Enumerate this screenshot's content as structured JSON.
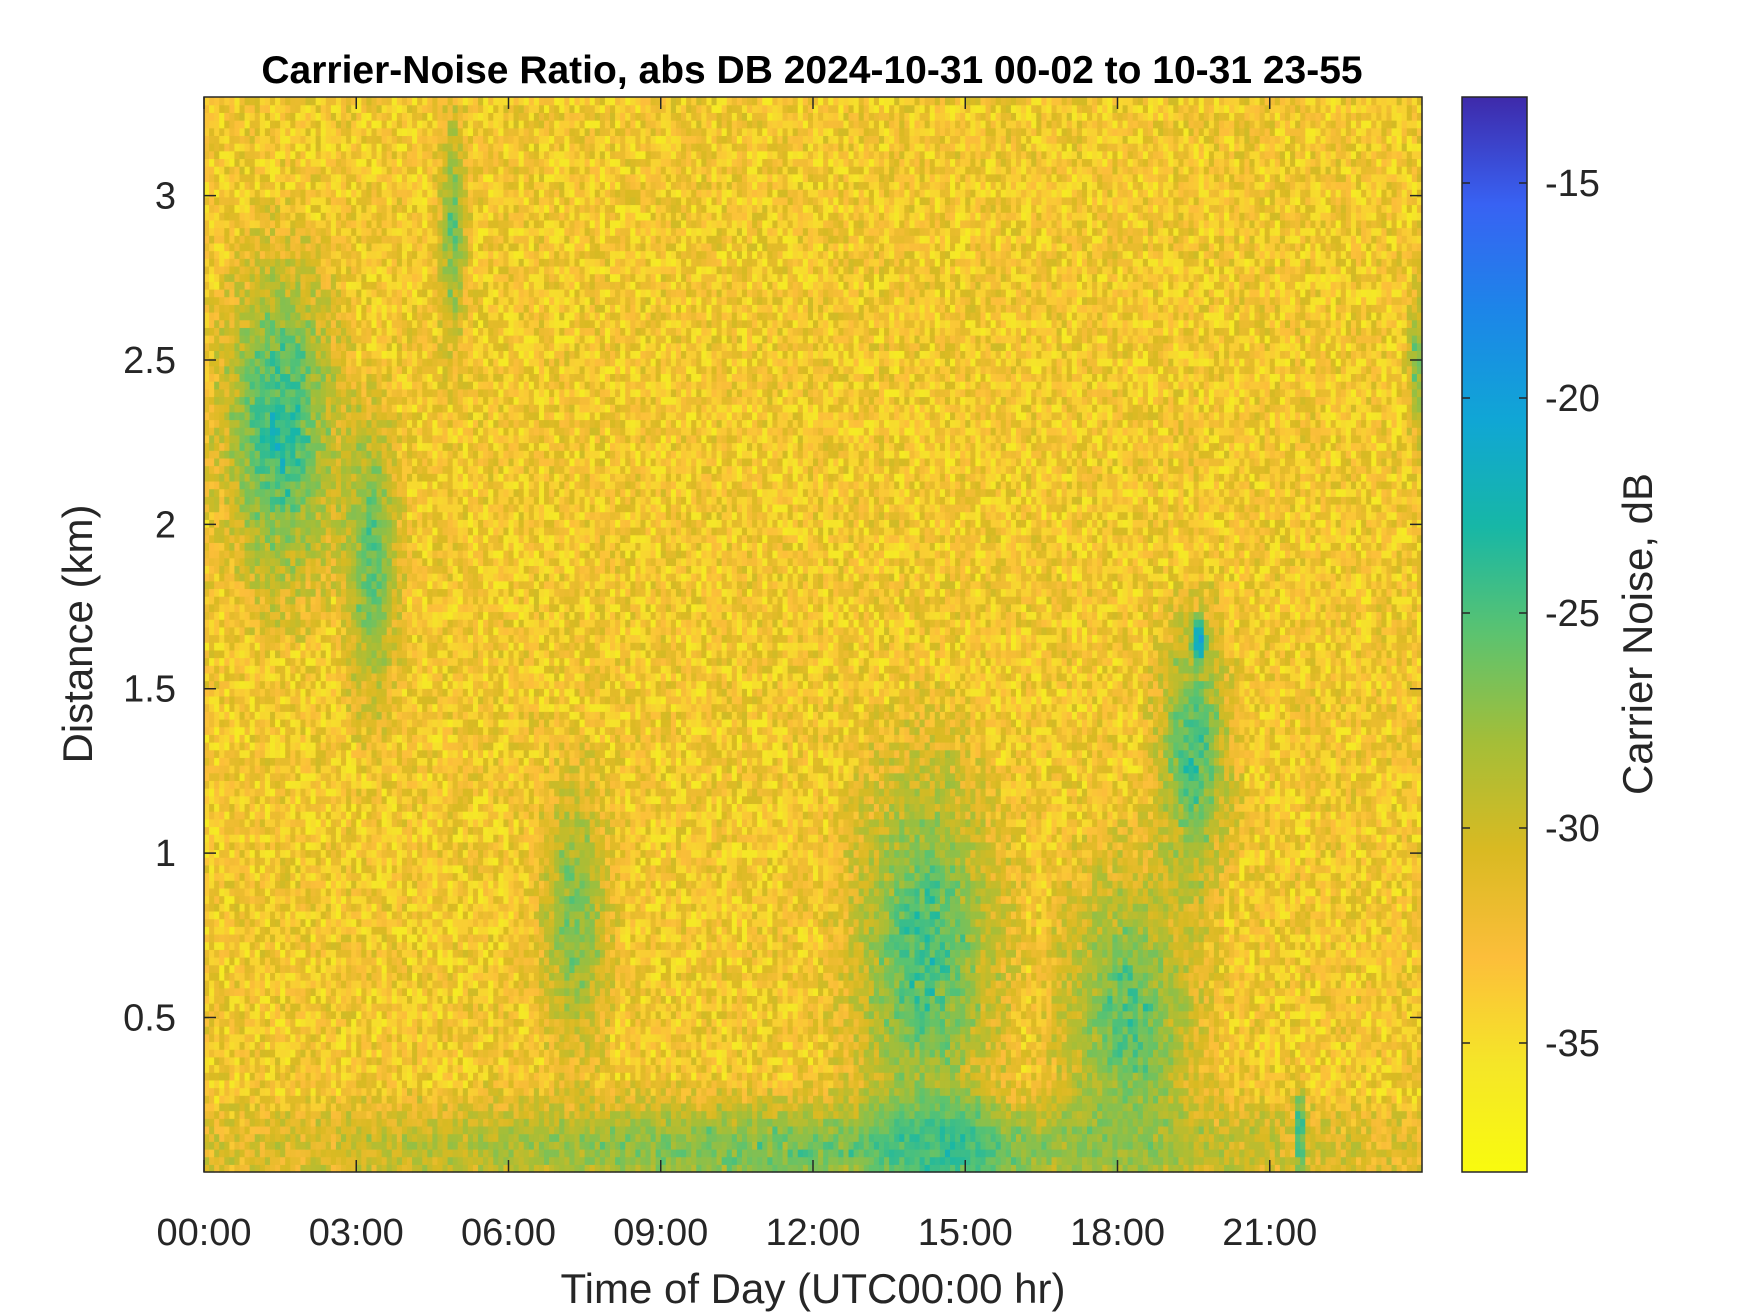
{
  "chart_data": {
    "type": "heatmap",
    "title": "Carrier-Noise Ratio, abs DB 2024-10-31 00-02 to 10-31 23-55",
    "xlabel": "Time of Day (UTC00:00 hr)",
    "ylabel": "Distance (km)",
    "colorbar_label": "Carrier Noise, dB",
    "xlim": [
      0,
      24
    ],
    "ylim": [
      0.03,
      3.3
    ],
    "clim": [
      -38,
      -13
    ],
    "colormap": "parula",
    "x_ticks": [
      {
        "value": 0,
        "label": "00:00"
      },
      {
        "value": 3,
        "label": "03:00"
      },
      {
        "value": 6,
        "label": "06:00"
      },
      {
        "value": 9,
        "label": "09:00"
      },
      {
        "value": 12,
        "label": "12:00"
      },
      {
        "value": 15,
        "label": "15:00"
      },
      {
        "value": 18,
        "label": "18:00"
      },
      {
        "value": 21,
        "label": "21:00"
      }
    ],
    "y_ticks": [
      {
        "value": 0.5,
        "label": "0.5"
      },
      {
        "value": 1,
        "label": "1"
      },
      {
        "value": 1.5,
        "label": "1.5"
      },
      {
        "value": 2,
        "label": "2"
      },
      {
        "value": 2.5,
        "label": "2.5"
      },
      {
        "value": 3,
        "label": "3"
      }
    ],
    "colorbar_ticks": [
      {
        "value": -15,
        "label": "-15"
      },
      {
        "value": -20,
        "label": "-20"
      },
      {
        "value": -25,
        "label": "-25"
      },
      {
        "value": -30,
        "label": "-30"
      },
      {
        "value": -35,
        "label": "-35"
      }
    ],
    "grid": false,
    "background_level": -33,
    "features": [
      {
        "x_center": 1.5,
        "y_center": 2.3,
        "x_width": 2.5,
        "y_height": 1.1,
        "value": -22
      },
      {
        "x_center": 3.3,
        "y_center": 1.9,
        "x_width": 1.2,
        "y_height": 1.0,
        "value": -24
      },
      {
        "x_center": 4.9,
        "y_center": 2.9,
        "x_width": 0.6,
        "y_height": 0.8,
        "value": -25
      },
      {
        "x_center": 7.3,
        "y_center": 0.8,
        "x_width": 1.5,
        "y_height": 0.9,
        "value": -25
      },
      {
        "x_center": 14.2,
        "y_center": 0.7,
        "x_width": 3.2,
        "y_height": 1.3,
        "value": -23
      },
      {
        "x_center": 14.5,
        "y_center": 0.1,
        "x_width": 3.0,
        "y_height": 0.3,
        "value": -20
      },
      {
        "x_center": 18.2,
        "y_center": 0.5,
        "x_width": 3.0,
        "y_height": 1.0,
        "value": -24
      },
      {
        "x_center": 19.5,
        "y_center": 1.3,
        "x_width": 1.6,
        "y_height": 0.9,
        "value": -23
      },
      {
        "x_center": 19.6,
        "y_center": 1.65,
        "x_width": 0.3,
        "y_height": 0.15,
        "value": -17
      },
      {
        "x_center": 21.6,
        "y_center": 0.15,
        "x_width": 0.2,
        "y_height": 0.3,
        "value": -18
      },
      {
        "x_center": 23.9,
        "y_center": 2.5,
        "x_width": 0.4,
        "y_height": 0.5,
        "value": -25
      },
      {
        "x_center": 12.0,
        "y_center": 0.1,
        "x_width": 24.0,
        "y_height": 0.35,
        "value": -25
      }
    ]
  }
}
